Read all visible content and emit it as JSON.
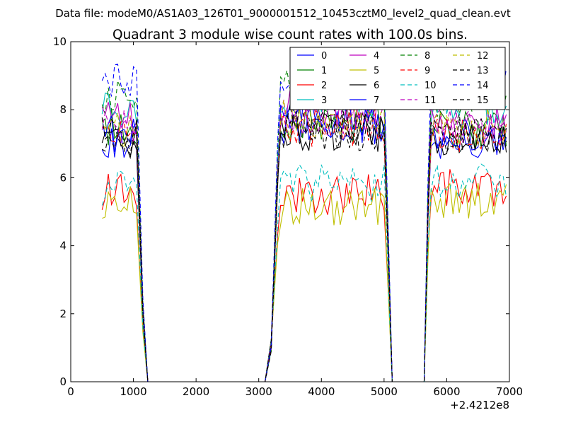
{
  "figure": {
    "suptitle": "Data file: modeM0/AS1A03_126T01_9000001512_10453cztM0_level2_quad_clean.evt"
  },
  "chart_data": {
    "type": "line",
    "title": "Quadrant 3 module wise count rates with 100.0s bins.",
    "xlabel": "",
    "ylabel": "",
    "x_offset_label": "+2.4212e8",
    "xlim": [
      0,
      7000
    ],
    "ylim": [
      0,
      10
    ],
    "xticks": [
      0,
      1000,
      2000,
      3000,
      4000,
      5000,
      6000,
      7000
    ],
    "yticks": [
      0,
      2,
      4,
      6,
      8,
      10
    ],
    "grid": false,
    "legend_position": "top-right",
    "legend_columns": 4,
    "active_segments": [
      {
        "start": 500,
        "end": 1050
      },
      {
        "start": 3350,
        "end": 5000
      },
      {
        "start": 5750,
        "end": 6950
      }
    ],
    "series": [
      {
        "name": "0",
        "color": "#0000ff",
        "style": "solid",
        "level1": 7.1,
        "level2": 7.5,
        "level3": 7.0
      },
      {
        "name": "1",
        "color": "#008000",
        "style": "solid",
        "level1": 7.5,
        "level2": 7.6,
        "level3": 7.4
      },
      {
        "name": "2",
        "color": "#ff0000",
        "style": "solid",
        "level1": 5.6,
        "level2": 5.5,
        "level3": 5.7
      },
      {
        "name": "3",
        "color": "#00bfbf",
        "style": "solid",
        "level1": 8.0,
        "level2": 8.3,
        "level3": 8.1
      },
      {
        "name": "4",
        "color": "#bf00bf",
        "style": "solid",
        "level1": 7.8,
        "level2": 8.0,
        "level3": 7.6
      },
      {
        "name": "5",
        "color": "#bfbf00",
        "style": "solid",
        "level1": 5.2,
        "level2": 5.2,
        "level3": 5.3
      },
      {
        "name": "6",
        "color": "#000000",
        "style": "solid",
        "level1": 7.0,
        "level2": 7.3,
        "level3": 7.1
      },
      {
        "name": "7",
        "color": "#0000ff",
        "style": "solid",
        "level1": 7.3,
        "level2": 7.7,
        "level3": 7.3
      },
      {
        "name": "8",
        "color": "#008000",
        "style": "dashed",
        "level1": 8.4,
        "level2": 8.6,
        "level3": 8.3
      },
      {
        "name": "9",
        "color": "#ff0000",
        "style": "dashed",
        "level1": 7.3,
        "level2": 7.5,
        "level3": 7.2
      },
      {
        "name": "10",
        "color": "#00bfbf",
        "style": "dashed",
        "level1": 5.7,
        "level2": 5.8,
        "level3": 5.9
      },
      {
        "name": "11",
        "color": "#bf00bf",
        "style": "dashed",
        "level1": 7.5,
        "level2": 7.8,
        "level3": 7.5
      },
      {
        "name": "12",
        "color": "#bfbf00",
        "style": "dashed",
        "level1": 7.4,
        "level2": 7.7,
        "level3": 7.5
      },
      {
        "name": "13",
        "color": "#000000",
        "style": "dashed",
        "level1": 7.2,
        "level2": 7.4,
        "level3": 7.2
      },
      {
        "name": "14",
        "color": "#0000ff",
        "style": "dashed",
        "level1": 8.8,
        "level2": 9.0,
        "level3": 8.7
      },
      {
        "name": "15",
        "color": "#000000",
        "style": "dashed",
        "level1": 7.3,
        "level2": 7.6,
        "level3": 7.4
      }
    ]
  }
}
